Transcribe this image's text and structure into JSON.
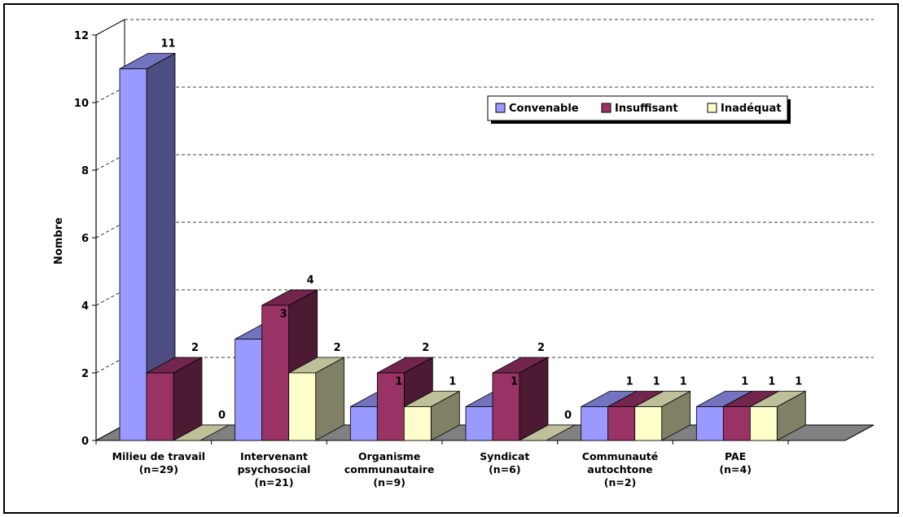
{
  "chart_data": {
    "type": "bar",
    "title": "",
    "xlabel": "",
    "ylabel": "Nombre",
    "ylim": [
      0,
      12
    ],
    "yticks": [
      0,
      2,
      4,
      6,
      8,
      10,
      12
    ],
    "grid": "dashed horizontal",
    "legend_position": "top-right",
    "categories": [
      [
        "Milieu de travail",
        "(n=29)"
      ],
      [
        "Intervenant",
        "psychosocial",
        "(n=21)"
      ],
      [
        "Organisme",
        "communautaire",
        "(n=9)"
      ],
      [
        "Syndicat",
        "(n=6)"
      ],
      [
        "Communauté",
        "autochtone",
        "(n=2)"
      ],
      [
        "PAE",
        "(n=4)"
      ]
    ],
    "series": [
      {
        "name": "Convenable",
        "values": [
          11,
          3,
          1,
          1,
          1,
          1
        ],
        "color": "#9999FF"
      },
      {
        "name": "Insuffisant",
        "values": [
          2,
          4,
          2,
          2,
          1,
          1
        ],
        "color": "#993366"
      },
      {
        "name": "Inadéquat",
        "values": [
          0,
          2,
          1,
          0,
          1,
          1
        ],
        "color": "#FFFFCC"
      }
    ]
  }
}
